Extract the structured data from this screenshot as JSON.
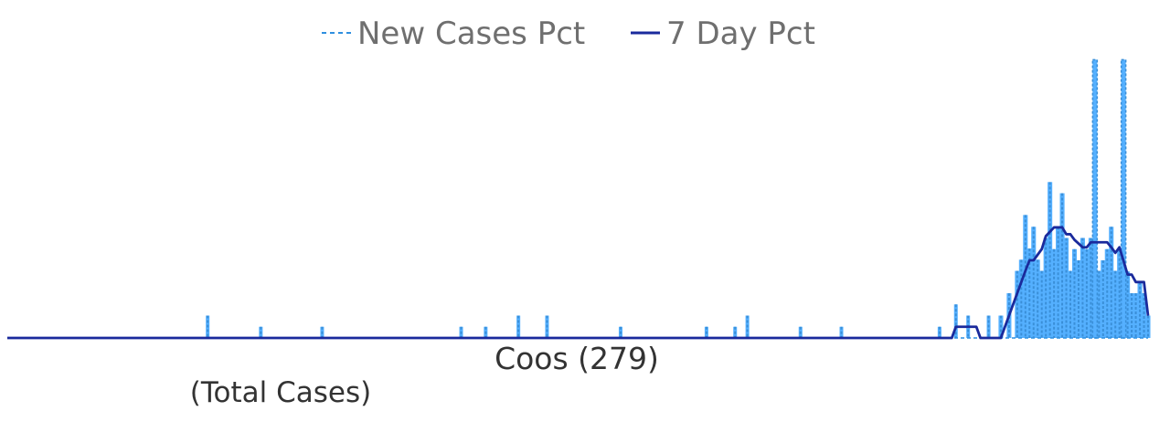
{
  "legend": {
    "new_cases_label": "New Cases Pct",
    "seven_day_label": "7 Day Pct"
  },
  "labels": {
    "county": "Coos (279)",
    "subtitle": "(Total Cases)"
  },
  "colors": {
    "bar": "#55b0ff",
    "bar_edge": "#3a8fd8",
    "dashed_line": "#2f8fe0",
    "seven_day_line": "#1a2a9c",
    "baseline": "#1a2a9c"
  },
  "chart_data": {
    "type": "bar",
    "title": "",
    "xlabel": "Coos (279)",
    "ylabel": "",
    "n_days": 280,
    "ylim": [
      0,
      0.045
    ],
    "legend_position": "top-center",
    "grid": false,
    "series": [
      {
        "name": "New Cases Pct",
        "style": "bar with dashed outline",
        "points": [
          [
            49,
            0.0036
          ],
          [
            62,
            0.0018
          ],
          [
            77,
            0.0018
          ],
          [
            111,
            0.0018
          ],
          [
            117,
            0.0018
          ],
          [
            125,
            0.0036
          ],
          [
            132,
            0.0036
          ],
          [
            150,
            0.0018
          ],
          [
            171,
            0.0018
          ],
          [
            178,
            0.0018
          ],
          [
            181,
            0.0036
          ],
          [
            194,
            0.0018
          ],
          [
            204,
            0.0018
          ],
          [
            228,
            0.0018
          ],
          [
            232,
            0.0054
          ],
          [
            235,
            0.0036
          ],
          [
            240,
            0.0036
          ],
          [
            243,
            0.0036
          ],
          [
            245,
            0.0072
          ],
          [
            247,
            0.0108
          ],
          [
            248,
            0.0126
          ],
          [
            249,
            0.0198
          ],
          [
            250,
            0.0144
          ],
          [
            251,
            0.0179
          ],
          [
            252,
            0.0126
          ],
          [
            253,
            0.0108
          ],
          [
            254,
            0.0161
          ],
          [
            255,
            0.0251
          ],
          [
            256,
            0.0143
          ],
          [
            257,
            0.0179
          ],
          [
            258,
            0.0233
          ],
          [
            259,
            0.0161
          ],
          [
            260,
            0.0108
          ],
          [
            261,
            0.0143
          ],
          [
            262,
            0.0125
          ],
          [
            263,
            0.0161
          ],
          [
            264,
            0.0143
          ],
          [
            265,
            0.0161
          ],
          [
            266,
            0.0125
          ],
          [
            267,
            0.0108
          ],
          [
            268,
            0.0125
          ],
          [
            269,
            0.0143
          ],
          [
            270,
            0.0179
          ],
          [
            271,
            0.0108
          ],
          [
            272,
            0.0143
          ],
          [
            273,
            0.0108
          ],
          [
            274,
            0.0107
          ],
          [
            275,
            0.0072
          ],
          [
            276,
            0.0072
          ],
          [
            277,
            0.009
          ],
          [
            278,
            0.0072
          ],
          [
            279,
            0.0036
          ]
        ],
        "peaks": [
          [
            266,
            0.0448
          ],
          [
            273,
            0.0448
          ]
        ]
      },
      {
        "name": "7 Day Pct",
        "style": "solid line",
        "points": [
          [
            0,
            0
          ],
          [
            231,
            0
          ],
          [
            232,
            0.0018
          ],
          [
            237,
            0.0018
          ],
          [
            238,
            0
          ],
          [
            243,
            0
          ],
          [
            245,
            0.0036
          ],
          [
            247,
            0.0072
          ],
          [
            249,
            0.0108
          ],
          [
            250,
            0.0125
          ],
          [
            251,
            0.0125
          ],
          [
            253,
            0.0143
          ],
          [
            254,
            0.0164
          ],
          [
            256,
            0.0178
          ],
          [
            258,
            0.0178
          ],
          [
            259,
            0.0167
          ],
          [
            260,
            0.0167
          ],
          [
            261,
            0.0158
          ],
          [
            263,
            0.0146
          ],
          [
            264,
            0.0146
          ],
          [
            265,
            0.0154
          ],
          [
            266,
            0.0154
          ],
          [
            268,
            0.0154
          ],
          [
            269,
            0.0154
          ],
          [
            270,
            0.0146
          ],
          [
            271,
            0.0137
          ],
          [
            272,
            0.0146
          ],
          [
            274,
            0.0102
          ],
          [
            275,
            0.0102
          ],
          [
            276,
            0.009
          ],
          [
            277,
            0.009
          ],
          [
            278,
            0.009
          ],
          [
            279,
            0.0036
          ]
        ]
      }
    ]
  }
}
